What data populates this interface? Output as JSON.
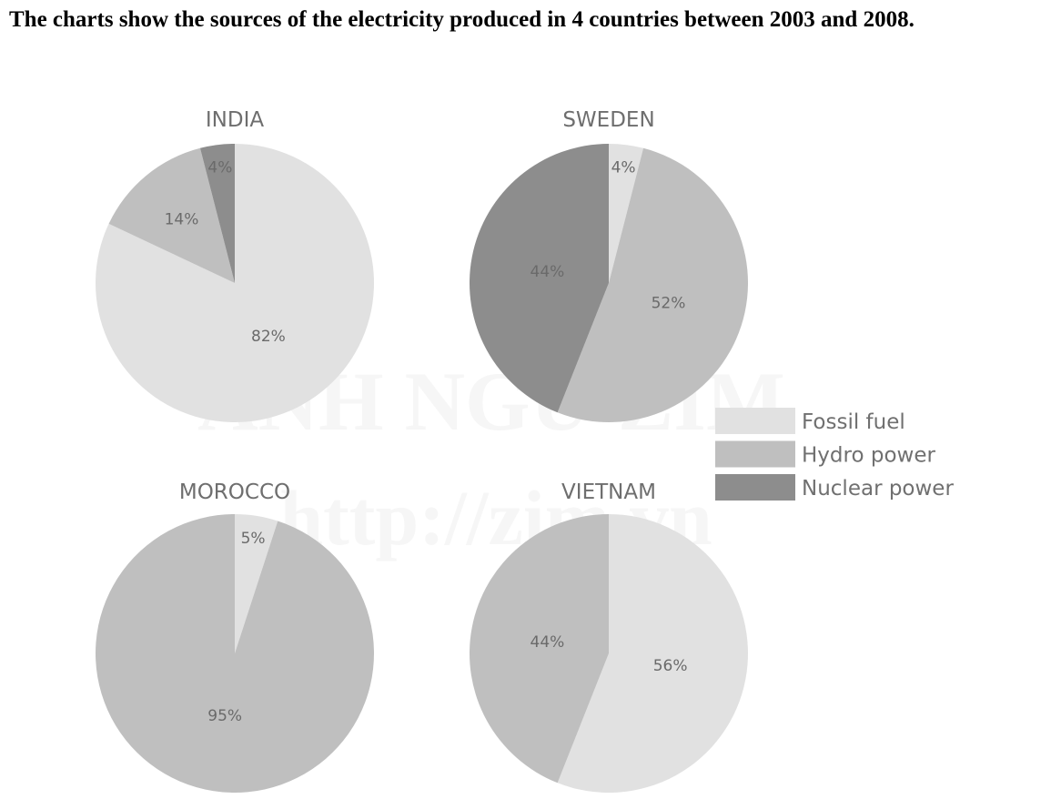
{
  "title": "The charts show the sources of the electricity produced in 4 countries between 2003 and 2008.",
  "watermark": {
    "line1": "ANH NGỮ ZIM",
    "line2": "http://zim.vn"
  },
  "colors": {
    "Fossil fuel": "#e1e1e1",
    "Hydro power": "#bfbfbf",
    "Nuclear power": "#8d8d8d"
  },
  "chart_data": {
    "type": "pie",
    "legend": {
      "placement": "right",
      "entries": [
        "Fossil fuel",
        "Hydro power",
        "Nuclear power"
      ]
    },
    "charts": [
      {
        "title": "INDIA",
        "slices": [
          {
            "category": "Fossil fuel",
            "value": 82,
            "label": "82%"
          },
          {
            "category": "Hydro power",
            "value": 14,
            "label": "14%"
          },
          {
            "category": "Nuclear power",
            "value": 4,
            "label": "4%"
          }
        ]
      },
      {
        "title": "SWEDEN",
        "slices": [
          {
            "category": "Fossil fuel",
            "value": 4,
            "label": "4%"
          },
          {
            "category": "Hydro power",
            "value": 52,
            "label": "52%"
          },
          {
            "category": "Nuclear power",
            "value": 44,
            "label": "44%"
          }
        ]
      },
      {
        "title": "MOROCCO",
        "slices": [
          {
            "category": "Fossil fuel",
            "value": 5,
            "label": "5%"
          },
          {
            "category": "Hydro power",
            "value": 95,
            "label": "95%"
          }
        ]
      },
      {
        "title": "VIETNAM",
        "slices": [
          {
            "category": "Fossil fuel",
            "value": 56,
            "label": "56%"
          },
          {
            "category": "Hydro power",
            "value": 44,
            "label": "44%"
          }
        ]
      }
    ]
  }
}
